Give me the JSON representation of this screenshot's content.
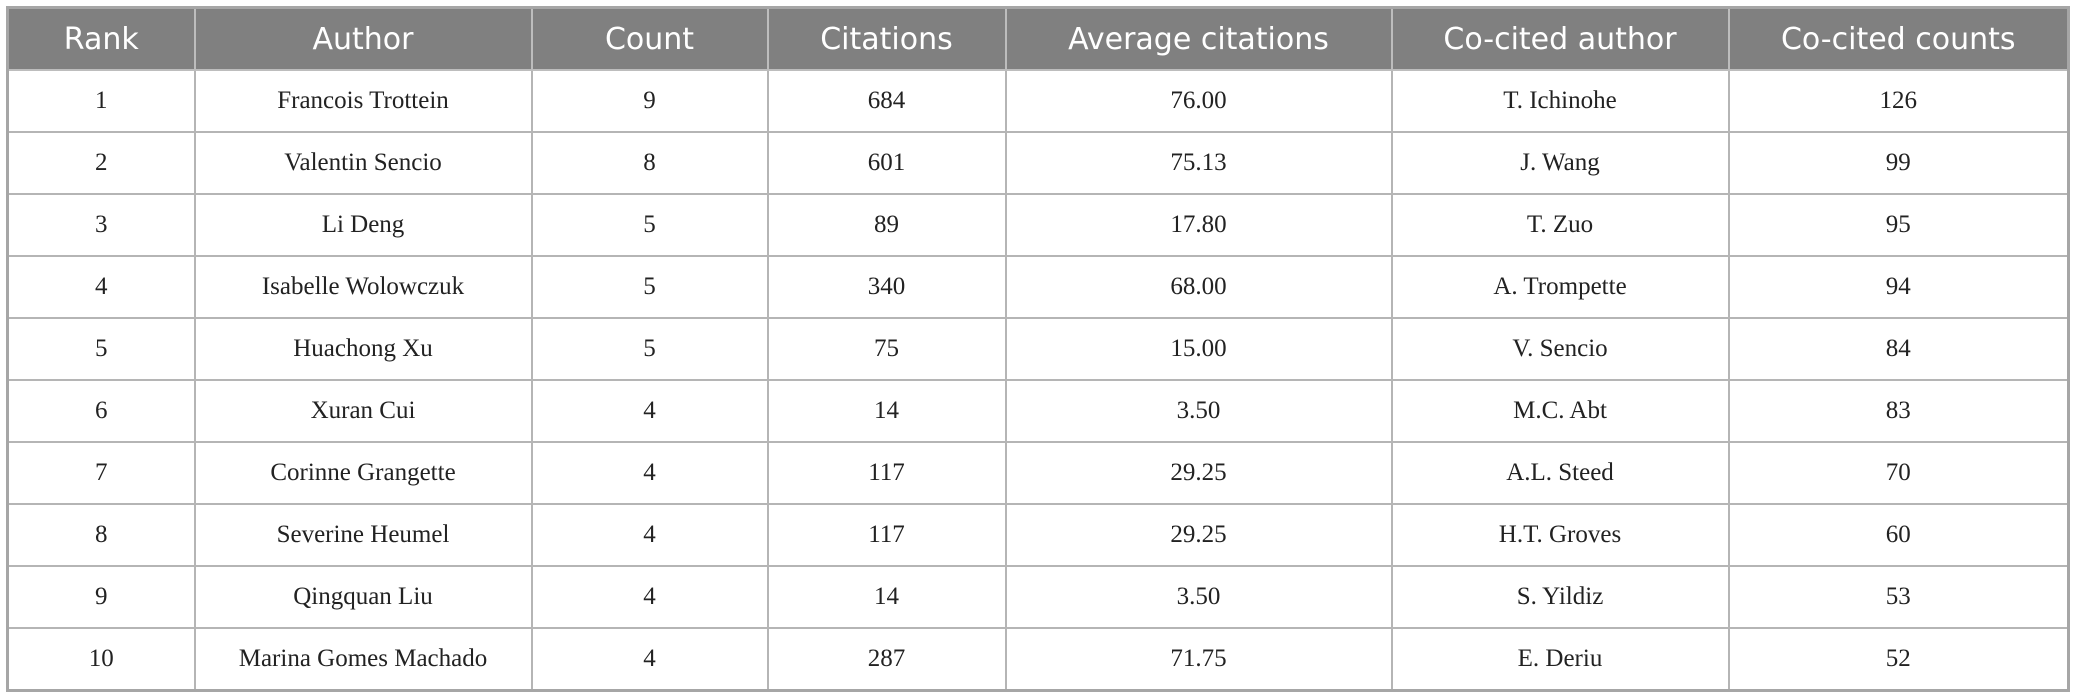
{
  "table": {
    "header": [
      "Rank",
      "Author",
      "Count",
      "Citations",
      "Average citations",
      "Co-cited author",
      "Co-cited counts"
    ],
    "rows": [
      [
        "1",
        "Francois Trottein",
        "9",
        "684",
        "76.00",
        "T. Ichinohe",
        "126"
      ],
      [
        "2",
        "Valentin Sencio",
        "8",
        "601",
        "75.13",
        "J. Wang",
        "99"
      ],
      [
        "3",
        "Li Deng",
        "5",
        "89",
        "17.80",
        "T. Zuo",
        "95"
      ],
      [
        "4",
        "Isabelle Wolowczuk",
        "5",
        "340",
        "68.00",
        "A. Trompette",
        "94"
      ],
      [
        "5",
        "Huachong Xu",
        "5",
        "75",
        "15.00",
        "V. Sencio",
        "84"
      ],
      [
        "6",
        "Xuran Cui",
        "4",
        "14",
        "3.50",
        "M.C. Abt",
        "83"
      ],
      [
        "7",
        "Corinne Grangette",
        "4",
        "117",
        "29.25",
        "A.L. Steed",
        "70"
      ],
      [
        "8",
        "Severine Heumel",
        "4",
        "117",
        "29.25",
        "H.T. Groves",
        "60"
      ],
      [
        "9",
        "Qingquan Liu",
        "4",
        "14",
        "3.50",
        "S. Yildiz",
        "53"
      ],
      [
        "10",
        "Marina Gomes Machado",
        "4",
        "287",
        "71.75",
        "E. Deriu",
        "52"
      ]
    ]
  }
}
